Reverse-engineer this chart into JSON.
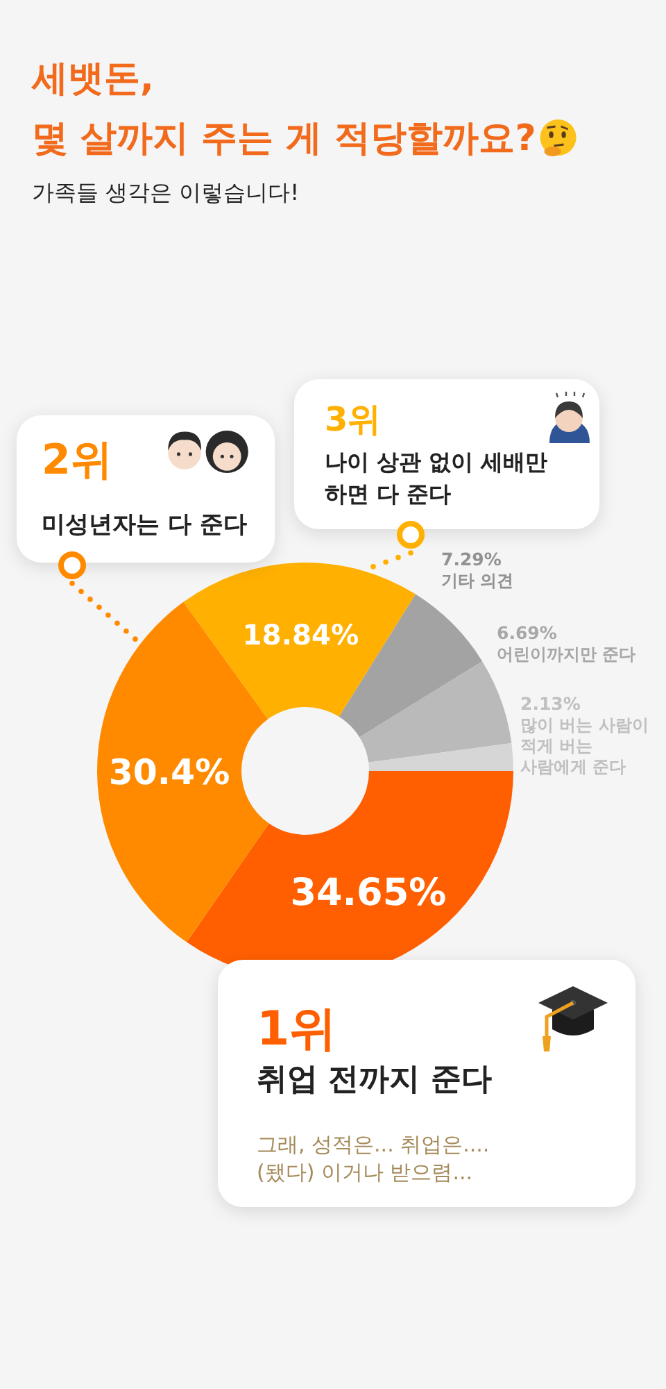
{
  "chart_data": {
    "type": "donut",
    "title": "세뱃돈,\n몇 살까지 주는 게 적당할까요?",
    "subtitle": "가족들 생각은 이렇습니다!",
    "categories": [
      "취업 전까지 준다",
      "미성년자는 다 준다",
      "나이 상관 없이 세배만 하면 다 준다",
      "기타 의견",
      "어린이까지만 준다",
      "많이 버는 사람이 적게 버는 사람에게 준다"
    ],
    "values": [
      34.65,
      30.4,
      18.84,
      7.29,
      6.69,
      2.13
    ],
    "colors": [
      "#ff5f00",
      "#ff8a00",
      "#ffb000",
      "#a3a3a3",
      "#bababa",
      "#d6d6d6"
    ],
    "value_labels": [
      "34.65%",
      "30.4%",
      "18.84%",
      "7.29%",
      "6.69%",
      "2.13%"
    ],
    "annotations": [
      "1위",
      "2위",
      "3위",
      "그래, 성적은... 취업은.... (됐다) 이거나 받으렴..."
    ]
  }
}
